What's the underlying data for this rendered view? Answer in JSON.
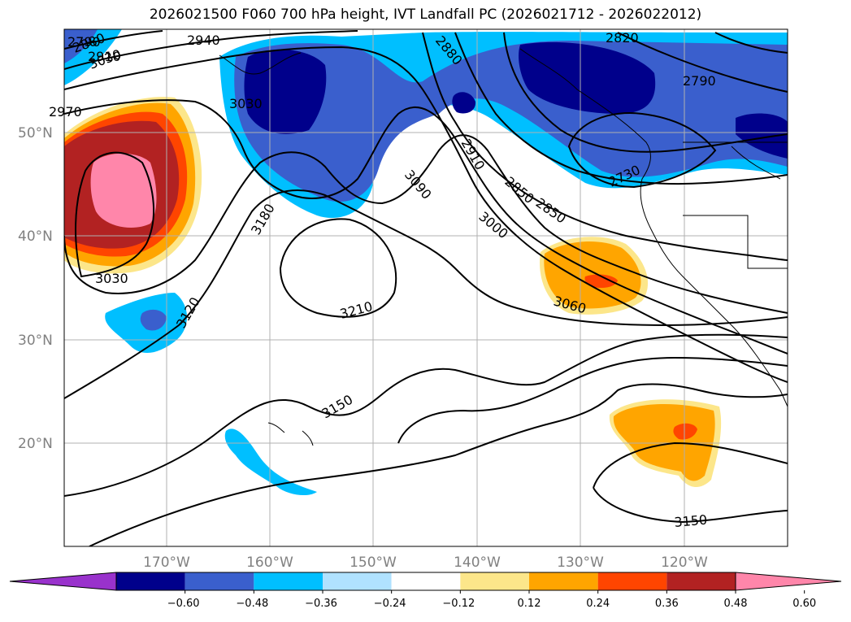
{
  "title": "2026021500 F060 700 hPa height, IVT Landfall PC (2026021712 - 2026022012)",
  "map": {
    "lat_ticks": [
      "50°N",
      "40°N",
      "30°N",
      "20°N"
    ],
    "lon_ticks": [
      "170°W",
      "160°W",
      "150°W",
      "140°W",
      "130°W",
      "120°W"
    ],
    "contour_labels": [
      "2790",
      "2850",
      "2910",
      "2940",
      "2880",
      "2820",
      "2790",
      "2730",
      "2850",
      "2910",
      "3000",
      "3030",
      "3090",
      "3180",
      "3120",
      "3210",
      "3150",
      "3060",
      "3150",
      "3030",
      "2970",
      "2880",
      "3030"
    ],
    "colors": {
      "grid": "#b0b0b0",
      "contour": "#000000",
      "coast": "#000000"
    }
  },
  "colorbar": {
    "ticks": [
      "−0.60",
      "−0.48",
      "−0.36",
      "−0.24",
      "−0.12",
      "0.12",
      "0.24",
      "0.36",
      "0.48",
      "0.60"
    ],
    "colors": [
      "#9932cc",
      "#00008b",
      "#3a5fcd",
      "#00bfff",
      "#b0e2ff",
      "#ffffff",
      "#fce68a",
      "#ffa500",
      "#ff4500",
      "#b22222",
      "#ff86aa"
    ]
  }
}
